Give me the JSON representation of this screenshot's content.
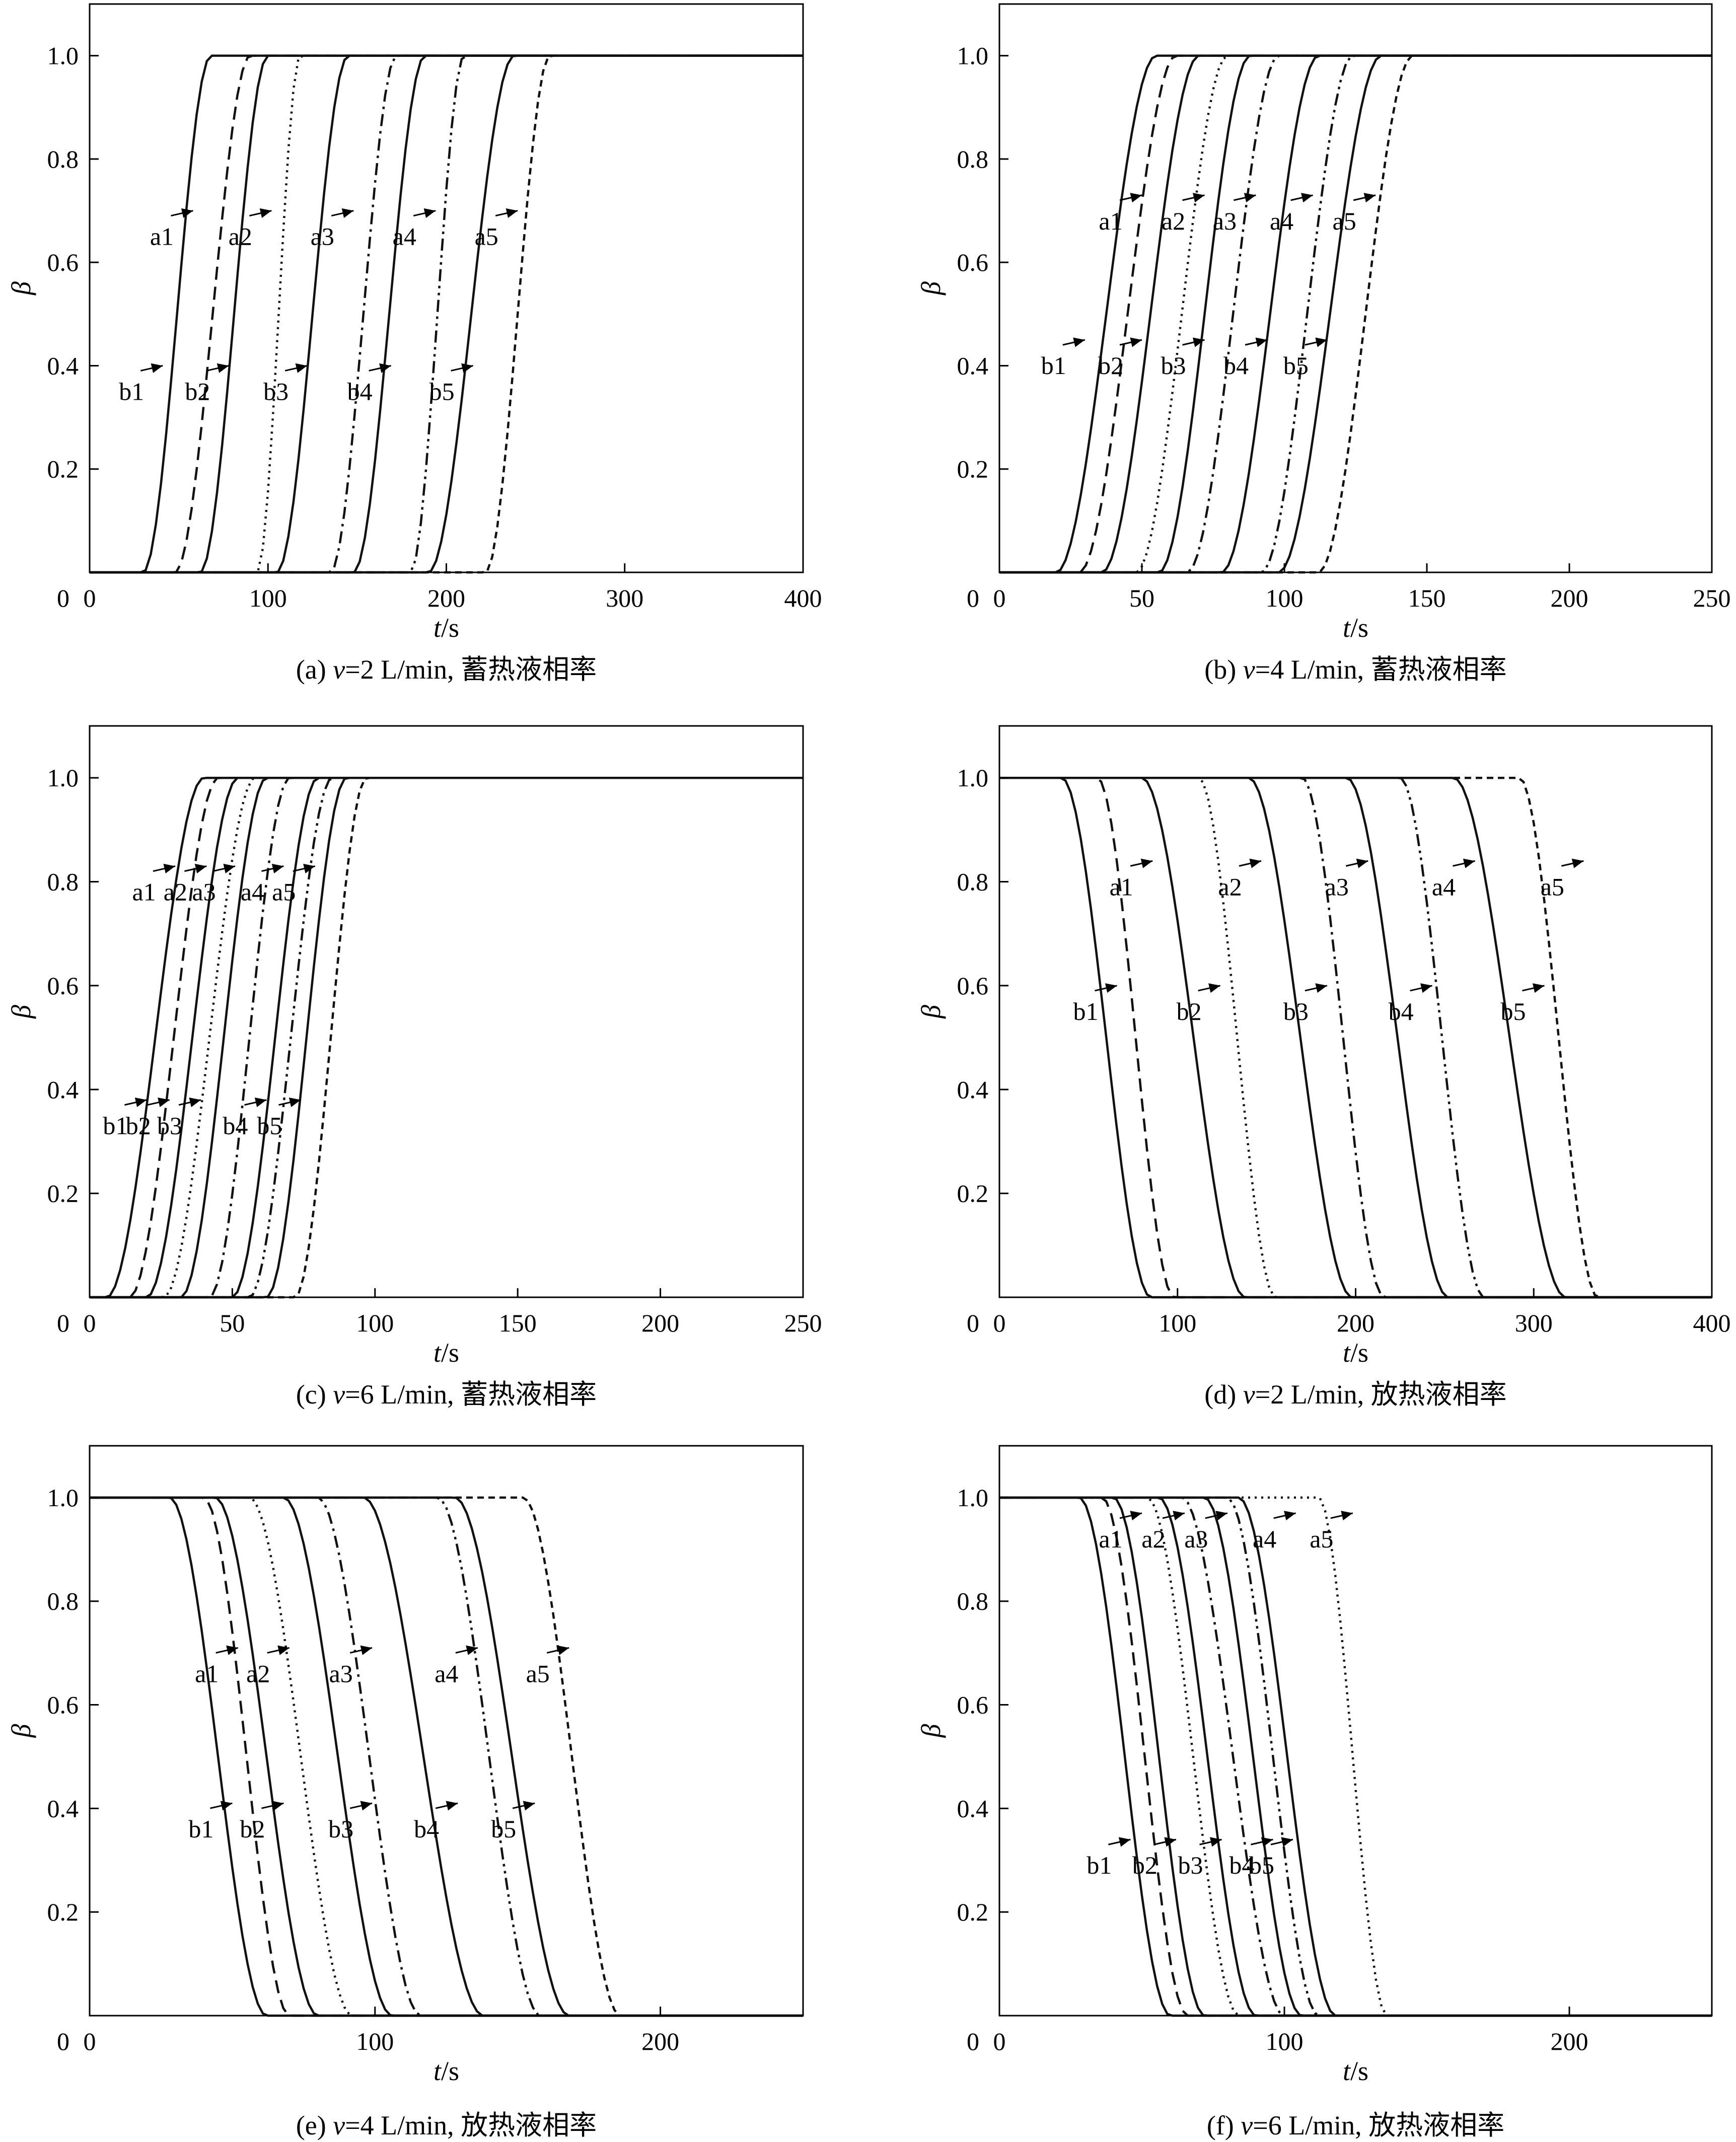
{
  "chart_data": [
    {
      "id": "a",
      "type": "line",
      "caption": {
        "prefix": "(a) ",
        "v": "v",
        "suffix": "=2 L/min, 蓄热液相率"
      },
      "ylabel": "β",
      "xlabel_italic": "t",
      "xlabel_unit": "/s",
      "xlim": [
        0,
        400
      ],
      "ylim": [
        0,
        1.1
      ],
      "xticks": [
        0,
        100,
        200,
        300,
        400
      ],
      "yticks": [
        0.2,
        0.4,
        0.6,
        0.8,
        1.0
      ],
      "direction": "rise",
      "series": [
        {
          "name": "b1",
          "style": "solid",
          "t_start": 30,
          "t_end": 68
        },
        {
          "name": "a1",
          "style": "dashed",
          "t_start": 48,
          "t_end": 90
        },
        {
          "name": "b2",
          "style": "solid",
          "t_start": 62,
          "t_end": 100
        },
        {
          "name": "a2",
          "style": "dotted",
          "t_start": 94,
          "t_end": 118
        },
        {
          "name": "b3",
          "style": "solid",
          "t_start": 105,
          "t_end": 145
        },
        {
          "name": "a3",
          "style": "dashdot",
          "t_start": 135,
          "t_end": 172
        },
        {
          "name": "b4",
          "style": "solid",
          "t_start": 148,
          "t_end": 188
        },
        {
          "name": "a4",
          "style": "dashdotdot",
          "t_start": 180,
          "t_end": 210
        },
        {
          "name": "b5",
          "style": "solid",
          "t_start": 190,
          "t_end": 238
        },
        {
          "name": "a5",
          "style": "short-dashed",
          "t_start": 222,
          "t_end": 258
        }
      ],
      "annotations": [
        {
          "text": "a1",
          "t": 58,
          "y": 0.7
        },
        {
          "text": "a2",
          "t": 102,
          "y": 0.7
        },
        {
          "text": "a3",
          "t": 148,
          "y": 0.7
        },
        {
          "text": "a4",
          "t": 194,
          "y": 0.7
        },
        {
          "text": "a5",
          "t": 240,
          "y": 0.7
        },
        {
          "text": "b1",
          "t": 41,
          "y": 0.4
        },
        {
          "text": "b2",
          "t": 78,
          "y": 0.4
        },
        {
          "text": "b3",
          "t": 122,
          "y": 0.4
        },
        {
          "text": "b4",
          "t": 169,
          "y": 0.4
        },
        {
          "text": "b5",
          "t": 215,
          "y": 0.4
        }
      ]
    },
    {
      "id": "b",
      "type": "line",
      "caption": {
        "prefix": "(b) ",
        "v": "v",
        "suffix": "=4 L/min, 蓄热液相率"
      },
      "ylabel": "β",
      "xlabel_italic": "t",
      "xlabel_unit": "/s",
      "xlim": [
        0,
        250
      ],
      "ylim": [
        0,
        1.1
      ],
      "xticks": [
        0,
        50,
        100,
        150,
        200,
        250
      ],
      "yticks": [
        0.2,
        0.4,
        0.6,
        0.8,
        1.0
      ],
      "direction": "rise",
      "series": [
        {
          "name": "b1",
          "style": "solid",
          "t_start": 20,
          "t_end": 55
        },
        {
          "name": "a1",
          "style": "dashed",
          "t_start": 28,
          "t_end": 62
        },
        {
          "name": "b2",
          "style": "solid",
          "t_start": 36,
          "t_end": 70
        },
        {
          "name": "a2",
          "style": "dotted",
          "t_start": 48,
          "t_end": 80
        },
        {
          "name": "b3",
          "style": "solid",
          "t_start": 56,
          "t_end": 88
        },
        {
          "name": "a3",
          "style": "dashdot",
          "t_start": 66,
          "t_end": 98
        },
        {
          "name": "b4",
          "style": "solid",
          "t_start": 78,
          "t_end": 112
        },
        {
          "name": "a4",
          "style": "dashdotdot",
          "t_start": 92,
          "t_end": 124
        },
        {
          "name": "b5",
          "style": "solid",
          "t_start": 98,
          "t_end": 134
        },
        {
          "name": "a5",
          "style": "short-dashed",
          "t_start": 112,
          "t_end": 145
        }
      ],
      "annotations": [
        {
          "text": "a1",
          "t": 50,
          "y": 0.73
        },
        {
          "text": "a2",
          "t": 72,
          "y": 0.73
        },
        {
          "text": "a3",
          "t": 90,
          "y": 0.73
        },
        {
          "text": "a4",
          "t": 110,
          "y": 0.73
        },
        {
          "text": "a5",
          "t": 132,
          "y": 0.73
        },
        {
          "text": "b1",
          "t": 30,
          "y": 0.45
        },
        {
          "text": "b2",
          "t": 50,
          "y": 0.45
        },
        {
          "text": "b3",
          "t": 72,
          "y": 0.45
        },
        {
          "text": "b4",
          "t": 94,
          "y": 0.45
        },
        {
          "text": "b5",
          "t": 115,
          "y": 0.45
        }
      ]
    },
    {
      "id": "c",
      "type": "line",
      "caption": {
        "prefix": "(c) ",
        "v": "v",
        "suffix": "=6 L/min, 蓄热液相率"
      },
      "ylabel": "β",
      "xlabel_italic": "t",
      "xlabel_unit": "/s",
      "xlim": [
        0,
        250
      ],
      "ylim": [
        0,
        1.1
      ],
      "xticks": [
        0,
        50,
        100,
        150,
        200,
        250
      ],
      "yticks": [
        0.2,
        0.4,
        0.6,
        0.8,
        1.0
      ],
      "direction": "rise",
      "series": [
        {
          "name": "b1",
          "style": "solid",
          "t_start": 6,
          "t_end": 40
        },
        {
          "name": "a1",
          "style": "dashed",
          "t_start": 14,
          "t_end": 45
        },
        {
          "name": "b2",
          "style": "solid",
          "t_start": 20,
          "t_end": 52
        },
        {
          "name": "a2",
          "style": "dotted",
          "t_start": 26,
          "t_end": 58
        },
        {
          "name": "b3",
          "style": "solid",
          "t_start": 32,
          "t_end": 62
        },
        {
          "name": "a3",
          "style": "dashdot",
          "t_start": 42,
          "t_end": 70
        },
        {
          "name": "b4",
          "style": "solid",
          "t_start": 50,
          "t_end": 80
        },
        {
          "name": "a4",
          "style": "dashdotdot",
          "t_start": 56,
          "t_end": 85
        },
        {
          "name": "b5",
          "style": "solid",
          "t_start": 62,
          "t_end": 90
        },
        {
          "name": "a5",
          "style": "short-dashed",
          "t_start": 72,
          "t_end": 97
        }
      ],
      "annotations": [
        {
          "text": "a1",
          "t": 30,
          "y": 0.83
        },
        {
          "text": "a2",
          "t": 41,
          "y": 0.83
        },
        {
          "text": "a3",
          "t": 51,
          "y": 0.83
        },
        {
          "text": "a4",
          "t": 68,
          "y": 0.83
        },
        {
          "text": "a5",
          "t": 79,
          "y": 0.83
        },
        {
          "text": "b1",
          "t": 20,
          "y": 0.38
        },
        {
          "text": "b2",
          "t": 28,
          "y": 0.38
        },
        {
          "text": "b3",
          "t": 39,
          "y": 0.38
        },
        {
          "text": "b4",
          "t": 62,
          "y": 0.38
        },
        {
          "text": "b5",
          "t": 74,
          "y": 0.38
        }
      ]
    },
    {
      "id": "d",
      "type": "line",
      "caption": {
        "prefix": "(d) ",
        "v": "v",
        "suffix": "=2 L/min, 放热液相率"
      },
      "ylabel": "β",
      "xlabel_italic": "t",
      "xlabel_unit": "/s",
      "xlim": [
        0,
        400
      ],
      "ylim": [
        0,
        1.1
      ],
      "xticks": [
        0,
        100,
        200,
        300,
        400
      ],
      "yticks": [
        0.2,
        0.4,
        0.6,
        0.8,
        1.0
      ],
      "direction": "fall",
      "series": [
        {
          "name": "b1",
          "style": "solid",
          "t_start": 35,
          "t_end": 85
        },
        {
          "name": "a1",
          "style": "dashed",
          "t_start": 55,
          "t_end": 98
        },
        {
          "name": "b2",
          "style": "solid",
          "t_start": 80,
          "t_end": 138
        },
        {
          "name": "a2",
          "style": "dotted",
          "t_start": 112,
          "t_end": 155
        },
        {
          "name": "b3",
          "style": "solid",
          "t_start": 140,
          "t_end": 198
        },
        {
          "name": "a3",
          "style": "dashdot",
          "t_start": 170,
          "t_end": 216
        },
        {
          "name": "b4",
          "style": "solid",
          "t_start": 195,
          "t_end": 252
        },
        {
          "name": "a4",
          "style": "dashdotdot",
          "t_start": 225,
          "t_end": 272
        },
        {
          "name": "b5",
          "style": "solid",
          "t_start": 255,
          "t_end": 318
        },
        {
          "name": "a5",
          "style": "short-dashed",
          "t_start": 292,
          "t_end": 336
        }
      ],
      "annotations": [
        {
          "text": "a1",
          "t": 86,
          "y": 0.84
        },
        {
          "text": "a2",
          "t": 147,
          "y": 0.84
        },
        {
          "text": "a3",
          "t": 207,
          "y": 0.84
        },
        {
          "text": "a4",
          "t": 267,
          "y": 0.84
        },
        {
          "text": "a5",
          "t": 328,
          "y": 0.84
        },
        {
          "text": "b1",
          "t": 66,
          "y": 0.6
        },
        {
          "text": "b2",
          "t": 124,
          "y": 0.6
        },
        {
          "text": "b3",
          "t": 184,
          "y": 0.6
        },
        {
          "text": "b4",
          "t": 243,
          "y": 0.6
        },
        {
          "text": "b5",
          "t": 306,
          "y": 0.6
        }
      ]
    },
    {
      "id": "e",
      "type": "line",
      "caption": {
        "prefix": "(e) ",
        "v": "v",
        "suffix": "=4 L/min, 放热液相率"
      },
      "ylabel": "β",
      "xlabel_italic": "t",
      "xlabel_unit": "/s",
      "xlim": [
        0,
        250
      ],
      "ylim": [
        0,
        1.1
      ],
      "xticks": [
        0,
        100,
        200
      ],
      "yticks": [
        0.2,
        0.4,
        0.6,
        0.8,
        1.0
      ],
      "direction": "fall",
      "series": [
        {
          "name": "b1",
          "style": "solid",
          "t_start": 28,
          "t_end": 62
        },
        {
          "name": "a1",
          "style": "dashed",
          "t_start": 40,
          "t_end": 70
        },
        {
          "name": "b2",
          "style": "solid",
          "t_start": 44,
          "t_end": 80
        },
        {
          "name": "a2",
          "style": "dotted",
          "t_start": 56,
          "t_end": 92
        },
        {
          "name": "b3",
          "style": "solid",
          "t_start": 68,
          "t_end": 106
        },
        {
          "name": "a3",
          "style": "dashdot",
          "t_start": 80,
          "t_end": 116
        },
        {
          "name": "b4",
          "style": "solid",
          "t_start": 96,
          "t_end": 138
        },
        {
          "name": "a4",
          "style": "dashdotdot",
          "t_start": 122,
          "t_end": 158
        },
        {
          "name": "b5",
          "style": "solid",
          "t_start": 128,
          "t_end": 168
        },
        {
          "name": "a5",
          "style": "short-dashed",
          "t_start": 152,
          "t_end": 186
        }
      ],
      "annotations": [
        {
          "text": "a1",
          "t": 52,
          "y": 0.71
        },
        {
          "text": "a2",
          "t": 70,
          "y": 0.71
        },
        {
          "text": "a3",
          "t": 99,
          "y": 0.71
        },
        {
          "text": "a4",
          "t": 136,
          "y": 0.71
        },
        {
          "text": "a5",
          "t": 168,
          "y": 0.71
        },
        {
          "text": "b1",
          "t": 50,
          "y": 0.41
        },
        {
          "text": "b2",
          "t": 68,
          "y": 0.41
        },
        {
          "text": "b3",
          "t": 99,
          "y": 0.41
        },
        {
          "text": "b4",
          "t": 129,
          "y": 0.41
        },
        {
          "text": "b5",
          "t": 156,
          "y": 0.41
        }
      ]
    },
    {
      "id": "f",
      "type": "line",
      "caption": {
        "prefix": "(f) ",
        "v": "v",
        "suffix": "=6 L/min, 放热液相率"
      },
      "ylabel": "β",
      "xlabel_italic": "t",
      "xlabel_unit": "/s",
      "xlim": [
        0,
        250
      ],
      "ylim": [
        0,
        1.1
      ],
      "xticks": [
        0,
        100,
        200
      ],
      "yticks": [
        0.2,
        0.4,
        0.6,
        0.8,
        1.0
      ],
      "direction": "fall",
      "series": [
        {
          "name": "b1",
          "style": "solid",
          "t_start": 28,
          "t_end": 60
        },
        {
          "name": "a1",
          "style": "dashed",
          "t_start": 36,
          "t_end": 66
        },
        {
          "name": "b2",
          "style": "solid",
          "t_start": 40,
          "t_end": 72
        },
        {
          "name": "a2",
          "style": "dotted",
          "t_start": 52,
          "t_end": 84
        },
        {
          "name": "b3",
          "style": "solid",
          "t_start": 56,
          "t_end": 90
        },
        {
          "name": "a3",
          "style": "dashdot",
          "t_start": 64,
          "t_end": 100
        },
        {
          "name": "b4",
          "style": "solid",
          "t_start": 72,
          "t_end": 106
        },
        {
          "name": "a4",
          "style": "dashdotdot",
          "t_start": 80,
          "t_end": 112
        },
        {
          "name": "b5",
          "style": "solid",
          "t_start": 84,
          "t_end": 118
        },
        {
          "name": "a5",
          "style": "dotted",
          "t_start": 112,
          "t_end": 136
        }
      ],
      "annotations": [
        {
          "text": "a1",
          "t": 50,
          "y": 0.97
        },
        {
          "text": "a2",
          "t": 65,
          "y": 0.97
        },
        {
          "text": "a3",
          "t": 80,
          "y": 0.97
        },
        {
          "text": "a4",
          "t": 104,
          "y": 0.97
        },
        {
          "text": "a5",
          "t": 124,
          "y": 0.97
        },
        {
          "text": "b1",
          "t": 46,
          "y": 0.34
        },
        {
          "text": "b2",
          "t": 62,
          "y": 0.34
        },
        {
          "text": "b3",
          "t": 78,
          "y": 0.34
        },
        {
          "text": "b4",
          "t": 96,
          "y": 0.34
        },
        {
          "text": "b5",
          "t": 103,
          "y": 0.34
        }
      ]
    }
  ]
}
